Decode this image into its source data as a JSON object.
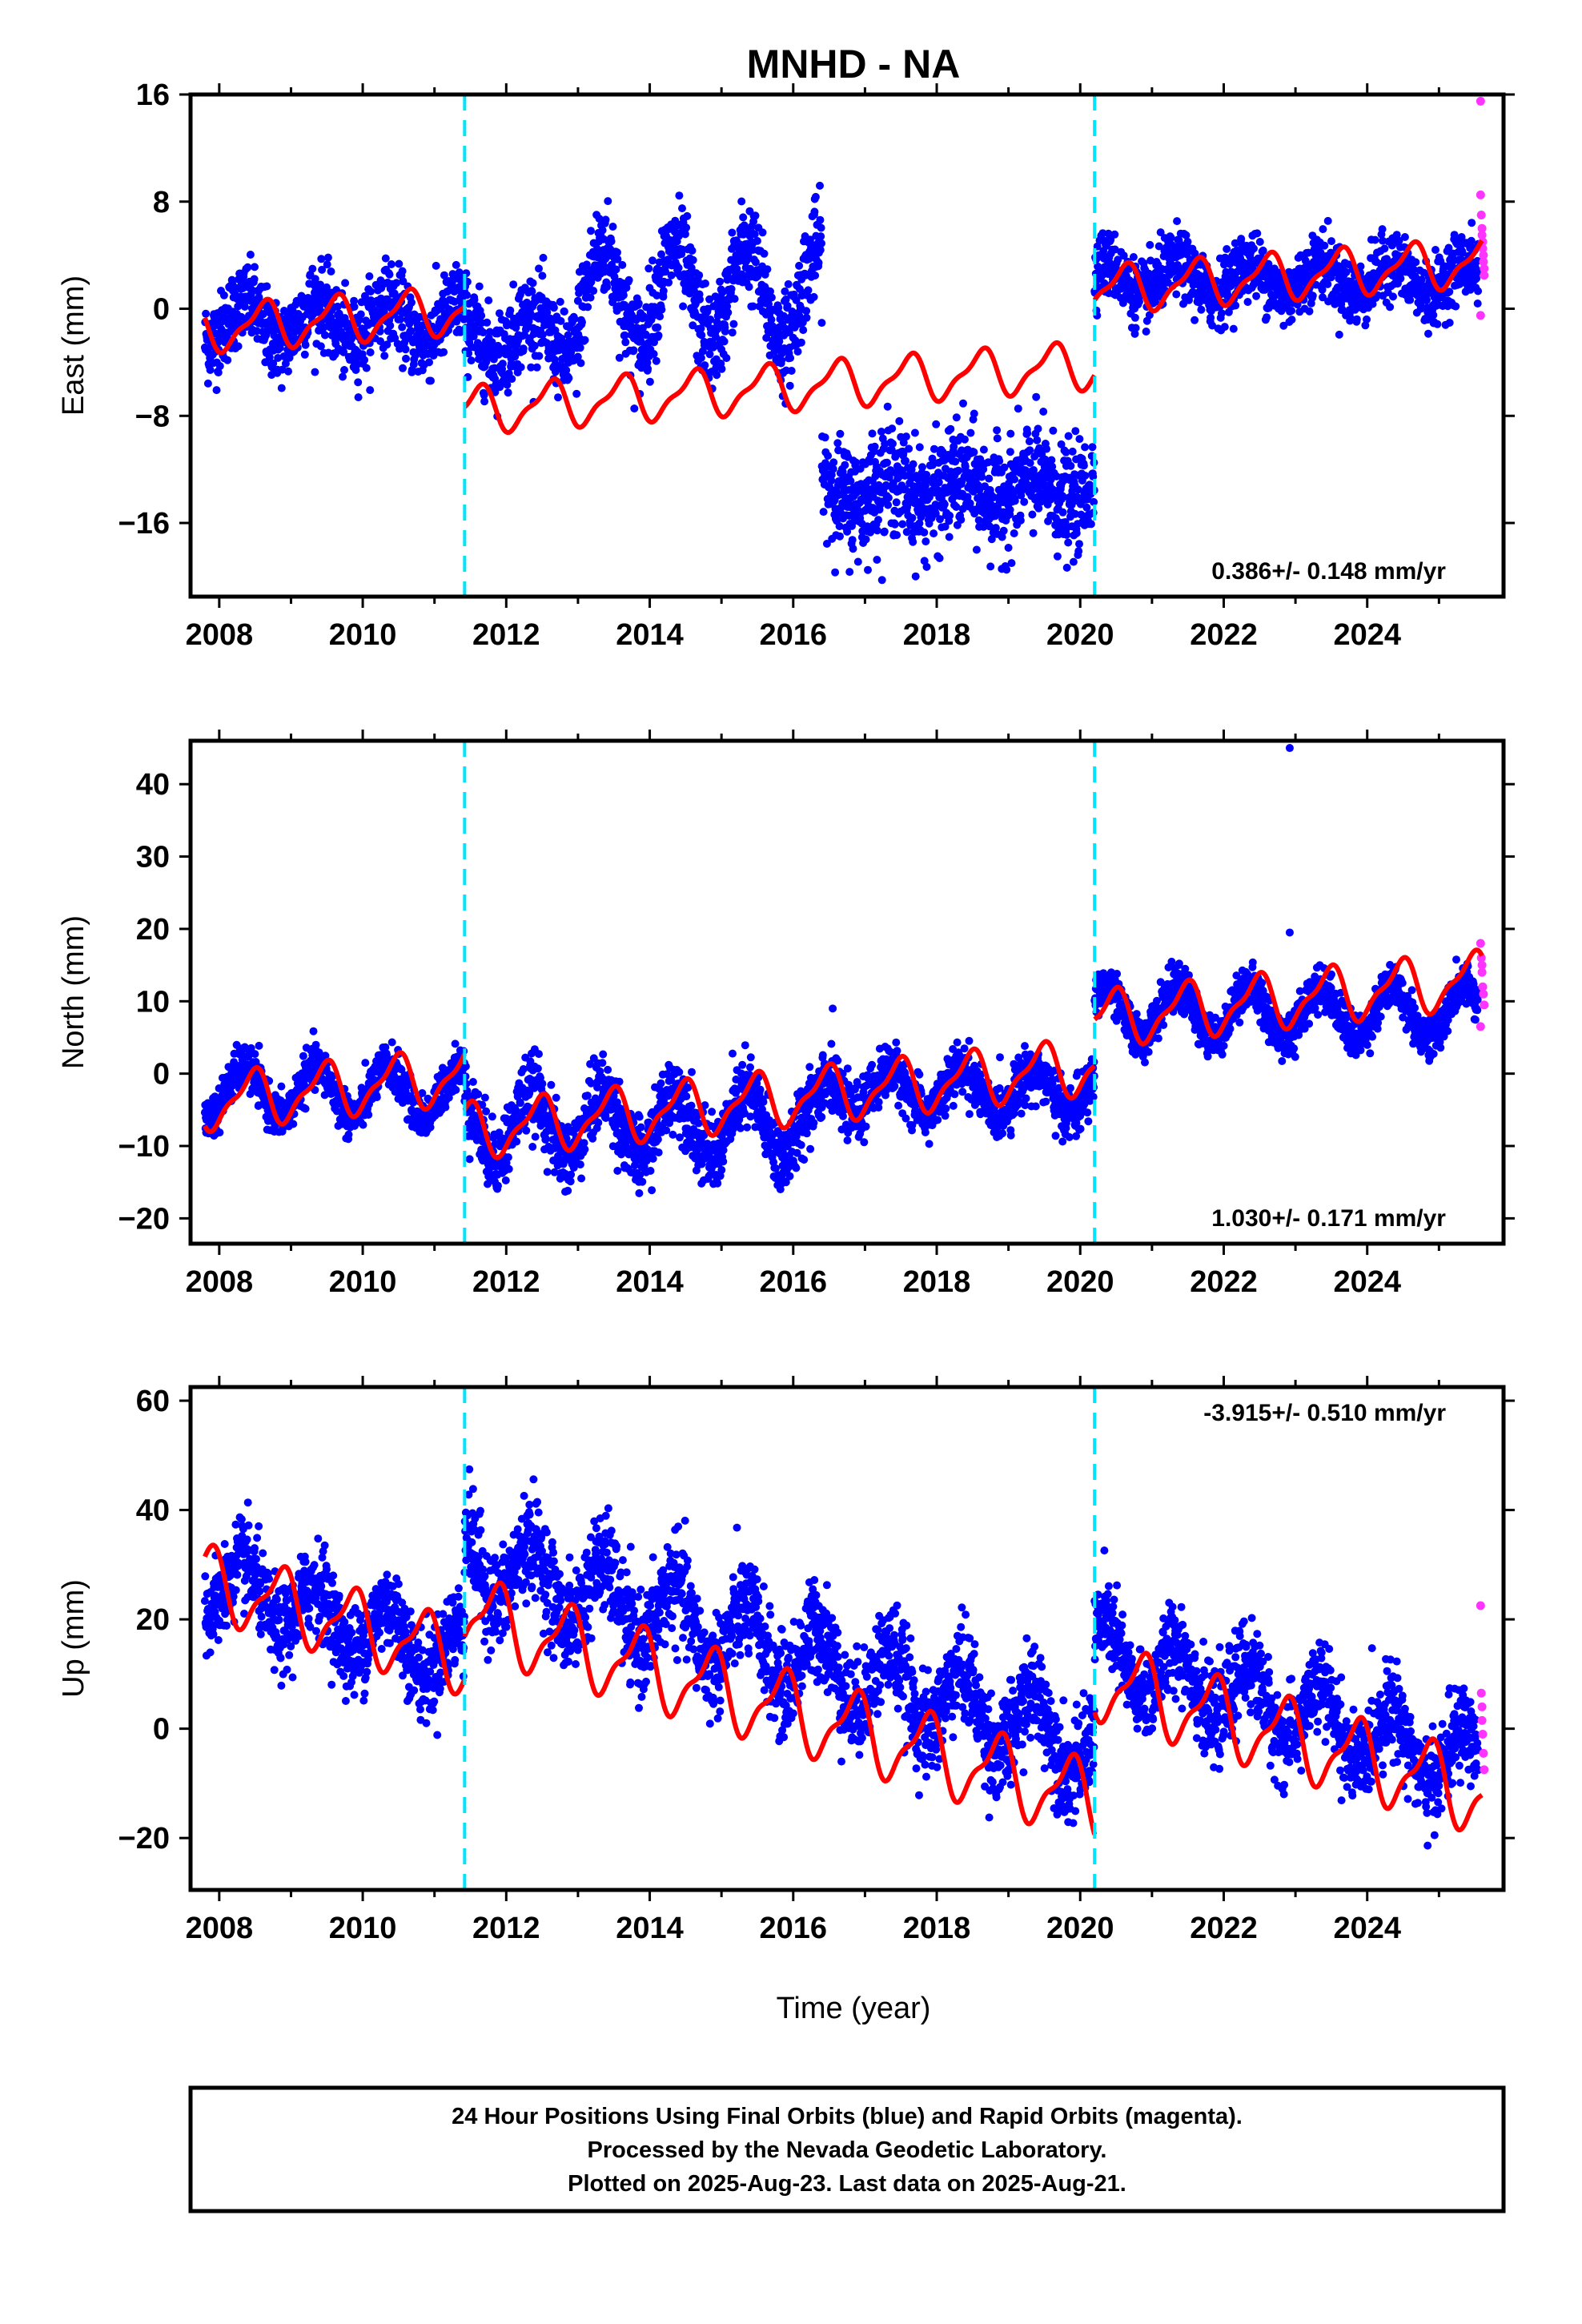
{
  "title": "MNHD - NA",
  "xlabel": "Time (year)",
  "colors": {
    "final_orbits": "#0000ff",
    "rapid_orbits": "#ff33ff",
    "model_fit": "#ff0000",
    "equipment_change": "#00e5ff"
  },
  "caption": {
    "line1": "24 Hour Positions Using Final Orbits (blue) and Rapid Orbits (magenta).",
    "line2": "Processed by the Nevada Geodetic Laboratory.",
    "line3": "Plotted on 2025-Aug-23. Last data on 2025-Aug-21."
  },
  "chart_data": [
    {
      "type": "scatter",
      "component": "East",
      "ylabel": "East (mm)",
      "xlim": [
        2007.6,
        2025.9
      ],
      "ylim": [
        -21.5,
        16
      ],
      "xticks": [
        "2008",
        "2010",
        "2012",
        "2014",
        "2016",
        "2018",
        "2020",
        "2022",
        "2024"
      ],
      "yticks": [
        "16",
        "8",
        "0",
        "-8",
        "-16"
      ],
      "rate": "0.386+/- 0.148 mm/yr",
      "rate_position": "bottom-right",
      "equipment_changes": [
        2011.42,
        2020.2
      ],
      "series": [
        {
          "role": "final_orbits",
          "segments": [
            {
              "x_start": 2007.8,
              "x_end": 2011.42,
              "mean": -1.0,
              "amp": 1.5,
              "noise": 1.5
            },
            {
              "x_start": 2011.42,
              "x_end": 2013.0,
              "mean": -2.0,
              "amp": 1.5,
              "noise": 1.6
            },
            {
              "x_start": 2013.0,
              "x_end": 2016.4,
              "mean": 1.0,
              "amp": 3.5,
              "noise": 1.8
            },
            {
              "x_start": 2016.4,
              "x_end": 2020.2,
              "mean": -13.5,
              "amp": 1.0,
              "noise": 2.0
            },
            {
              "x_start": 2020.2,
              "x_end": 2025.55,
              "mean": 2.2,
              "amp": 1.2,
              "noise": 1.2
            }
          ]
        },
        {
          "role": "rapid_orbits",
          "x": [
            2025.58,
            2025.58,
            2025.59,
            2025.6,
            2025.6,
            2025.61,
            2025.61,
            2025.62,
            2025.62,
            2025.63,
            2025.63,
            2025.58
          ],
          "y": [
            15.5,
            8.5,
            7.0,
            6.0,
            5.5,
            5.0,
            4.5,
            4.0,
            3.5,
            3.0,
            2.5,
            -0.5
          ]
        },
        {
          "role": "model_fit",
          "segments": [
            {
              "x_start": 2007.8,
              "x_end": 2011.42,
              "base": -1.5,
              "slope": 0.386,
              "amp": 1.6,
              "phase": 0.6
            },
            {
              "x_start": 2011.42,
              "x_end": 2020.2,
              "base": -7.6,
              "slope": 0.386,
              "amp": 1.6,
              "phase": 0.6
            },
            {
              "x_start": 2020.2,
              "x_end": 2025.6,
              "base": 1.4,
              "slope": 0.386,
              "amp": 1.6,
              "phase": 0.6
            }
          ]
        }
      ]
    },
    {
      "type": "scatter",
      "component": "North",
      "ylabel": "North (mm)",
      "xlim": [
        2007.6,
        2025.9
      ],
      "ylim": [
        -23.5,
        46
      ],
      "xticks": [
        "2008",
        "2010",
        "2012",
        "2014",
        "2016",
        "2018",
        "2020",
        "2022",
        "2024"
      ],
      "yticks": [
        "40",
        "30",
        "20",
        "10",
        "0",
        "-10",
        "-20"
      ],
      "rate": "1.030+/- 0.171 mm/yr",
      "rate_position": "bottom-right",
      "equipment_changes": [
        2011.42,
        2020.2
      ],
      "series": [
        {
          "role": "final_orbits",
          "segments": [
            {
              "x_start": 2007.8,
              "x_end": 2011.42,
              "mean": -2.5,
              "amp": 3.5,
              "noise": 1.5
            },
            {
              "x_start": 2011.42,
              "x_end": 2016.4,
              "mean": -7.0,
              "amp": 4.5,
              "noise": 2.5
            },
            {
              "x_start": 2016.4,
              "x_end": 2020.2,
              "mean": -2.5,
              "amp": 3.0,
              "noise": 1.8
            },
            {
              "x_start": 2020.2,
              "x_end": 2025.55,
              "mean": 8.5,
              "amp": 3.5,
              "noise": 1.5
            }
          ]
        },
        {
          "role": "rapid_orbits",
          "x": [
            2025.58,
            2025.59,
            2025.6,
            2025.6,
            2025.61,
            2025.62,
            2025.63,
            2025.58
          ],
          "y": [
            18.0,
            16.0,
            15.0,
            14.0,
            12.0,
            11.0,
            9.5,
            6.5
          ]
        },
        {
          "role": "model_fit",
          "segments": [
            {
              "x_start": 2007.8,
              "x_end": 2011.42,
              "base": -4.0,
              "slope": 1.03,
              "amp": 3.5,
              "phase": 0.45
            },
            {
              "x_start": 2011.42,
              "x_end": 2020.2,
              "base": -8.0,
              "slope": 1.03,
              "amp": 3.5,
              "phase": 0.45
            },
            {
              "x_start": 2020.2,
              "x_end": 2025.6,
              "base": 7.5,
              "slope": 1.03,
              "amp": 3.5,
              "phase": 0.45
            }
          ]
        }
      ],
      "outliers": {
        "x": [
          2022.92,
          2022.92,
          2016.55
        ],
        "y": [
          45.0,
          19.5,
          9.0
        ]
      }
    },
    {
      "type": "scatter",
      "component": "Up",
      "ylabel": "Up (mm)",
      "xlim": [
        2007.6,
        2025.9
      ],
      "ylim": [
        -29.5,
        62.5
      ],
      "xticks": [
        "2008",
        "2010",
        "2012",
        "2014",
        "2016",
        "2018",
        "2020",
        "2022",
        "2024"
      ],
      "yticks": [
        "60",
        "40",
        "20",
        "0",
        "-20"
      ],
      "rate": "-3.915+/- 0.510 mm/yr",
      "rate_position": "top-right",
      "equipment_changes": [
        2011.42,
        2020.2
      ],
      "series": [
        {
          "role": "final_orbits",
          "segments": [
            {
              "x_start": 2007.8,
              "x_end": 2011.42,
              "mean": 20.0,
              "slope": -3.9,
              "amp": 5.5,
              "noise": 4.0
            },
            {
              "x_start": 2011.42,
              "x_end": 2020.2,
              "mean": 14.0,
              "slope": -3.9,
              "amp": 6.5,
              "noise": 4.5
            },
            {
              "x_start": 2020.2,
              "x_end": 2025.55,
              "mean": 3.5,
              "slope": -3.9,
              "amp": 6.0,
              "noise": 4.0
            }
          ]
        },
        {
          "role": "rapid_orbits",
          "x": [
            2025.58,
            2025.59,
            2025.6,
            2025.6,
            2025.61,
            2025.62,
            2025.63
          ],
          "y": [
            22.5,
            6.5,
            4.0,
            1.5,
            -1.0,
            -4.5,
            -7.5
          ]
        },
        {
          "role": "model_fit",
          "segments": [
            {
              "x_start": 2007.8,
              "x_end": 2011.42,
              "base": 27.0,
              "slope": -3.915,
              "amp": 6.0,
              "phase": 0.85
            },
            {
              "x_start": 2011.42,
              "x_end": 2020.2,
              "base": 21.0,
              "slope": -3.915,
              "amp": 6.5,
              "phase": 0.85
            },
            {
              "x_start": 2020.2,
              "x_end": 2025.6,
              "base": 9.0,
              "slope": -3.915,
              "amp": 6.5,
              "phase": 0.85
            }
          ]
        }
      ]
    }
  ]
}
